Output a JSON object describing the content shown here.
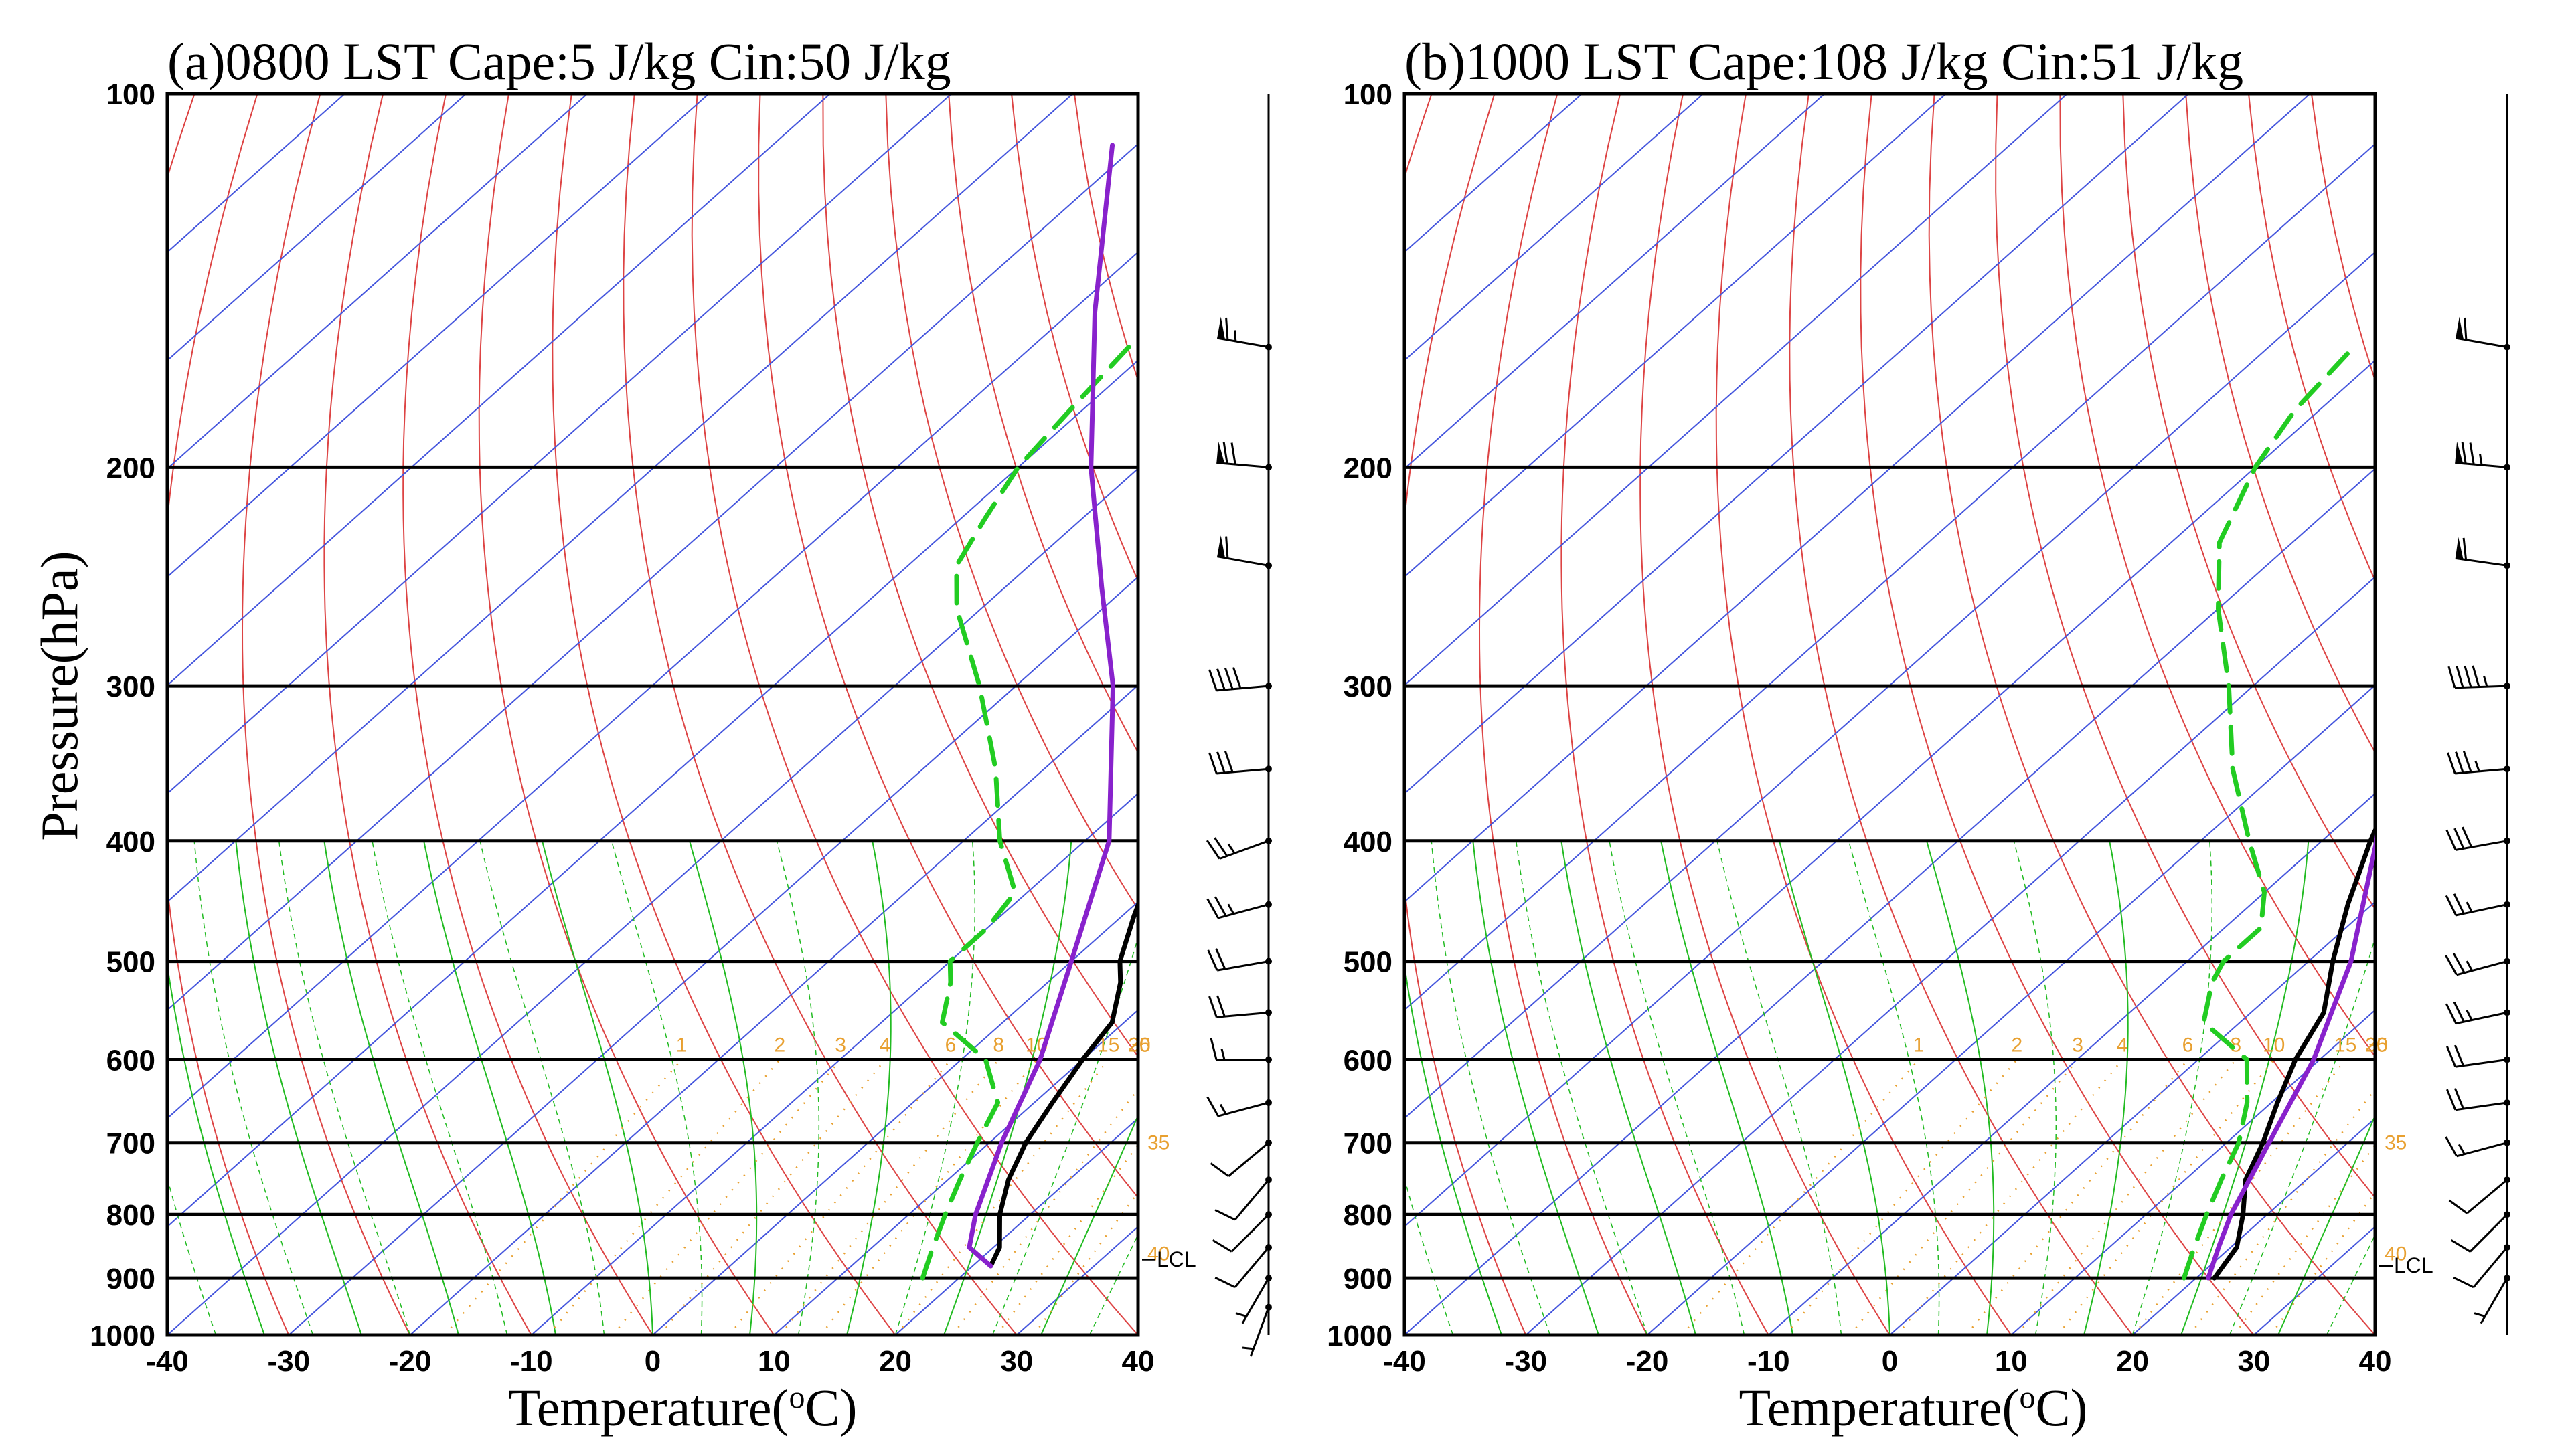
{
  "chart_data": [
    {
      "type": "skew-t",
      "title": "(a)0800 LST   Cape:5 J/kg   Cin:50 J/kg",
      "xlabel": "Temperature(oC)",
      "ylabel": "Pressure(hPa)",
      "xlim": [
        -40,
        40
      ],
      "ylim": [
        1000,
        100
      ],
      "x_ticks": [
        "-40",
        "-30",
        "-20",
        "-10",
        "0",
        "10",
        "20",
        "30",
        "40"
      ],
      "pressure_ticks": [
        "100",
        "200",
        "300",
        "400",
        "500",
        "600",
        "700",
        "800",
        "900",
        "1000"
      ],
      "mixing_ratio_labels": [
        "1",
        "2",
        "3",
        "4",
        "6",
        "8",
        "10",
        "15",
        "20",
        "25",
        "30",
        "35",
        "40"
      ],
      "lcl_label": "LCL",
      "lcl_pressure": 870,
      "series": [
        {
          "name": "temperature",
          "color": "#000000",
          "points": [
            [
              880,
              21.5
            ],
            [
              850,
              20.5
            ],
            [
              800,
              17.5
            ],
            [
              750,
              15
            ],
            [
              700,
              13
            ],
            [
              650,
              11.5
            ],
            [
              600,
              10
            ],
            [
              560,
              9
            ],
            [
              520,
              6
            ],
            [
              500,
              4
            ],
            [
              460,
              1
            ],
            [
              420,
              -2
            ],
            [
              380,
              -4
            ],
            [
              350,
              -6
            ],
            [
              300,
              -10
            ],
            [
              260,
              -13
            ],
            [
              240,
              -14
            ],
            [
              220,
              -12
            ],
            [
              200,
              -10
            ],
            [
              180,
              -8
            ],
            [
              160,
              -6
            ]
          ]
        },
        {
          "name": "dewpoint",
          "color": "#22cc22",
          "points": [
            [
              900,
              17
            ],
            [
              850,
              15
            ],
            [
              800,
              13
            ],
            [
              750,
              11
            ],
            [
              700,
              9
            ],
            [
              650,
              7
            ],
            [
              600,
              2
            ],
            [
              560,
              -5
            ],
            [
              520,
              -8
            ],
            [
              500,
              -10
            ],
            [
              470,
              -10
            ],
            [
              440,
              -11
            ],
            [
              400,
              -17
            ],
            [
              350,
              -24
            ],
            [
              300,
              -33
            ],
            [
              260,
              -42
            ],
            [
              240,
              -46
            ],
            [
              220,
              -48
            ],
            [
              200,
              -50
            ],
            [
              180,
              -51
            ],
            [
              160,
              -52
            ]
          ]
        },
        {
          "name": "parcel",
          "color": "#8822cc",
          "points": [
            [
              880,
              21.5
            ],
            [
              850,
              18
            ],
            [
              800,
              15.5
            ],
            [
              700,
              11
            ],
            [
              600,
              6.5
            ],
            [
              500,
              0
            ],
            [
              400,
              -8
            ],
            [
              300,
              -22
            ],
            [
              250,
              -32
            ],
            [
              200,
              -44
            ],
            [
              150,
              -58
            ],
            [
              110,
              -72
            ]
          ]
        }
      ],
      "wind_barbs": [
        {
          "pressure": 160,
          "speed_kt": 65,
          "dir_deg": 280
        },
        {
          "pressure": 200,
          "speed_kt": 70,
          "dir_deg": 275
        },
        {
          "pressure": 240,
          "speed_kt": 60,
          "dir_deg": 280
        },
        {
          "pressure": 300,
          "speed_kt": 40,
          "dir_deg": 265
        },
        {
          "pressure": 350,
          "speed_kt": 30,
          "dir_deg": 265
        },
        {
          "pressure": 400,
          "speed_kt": 25,
          "dir_deg": 250
        },
        {
          "pressure": 450,
          "speed_kt": 25,
          "dir_deg": 255
        },
        {
          "pressure": 500,
          "speed_kt": 20,
          "dir_deg": 260
        },
        {
          "pressure": 550,
          "speed_kt": 20,
          "dir_deg": 265
        },
        {
          "pressure": 600,
          "speed_kt": 15,
          "dir_deg": 270
        },
        {
          "pressure": 650,
          "speed_kt": 15,
          "dir_deg": 255
        },
        {
          "pressure": 700,
          "speed_kt": 10,
          "dir_deg": 230
        },
        {
          "pressure": 750,
          "speed_kt": 10,
          "dir_deg": 220
        },
        {
          "pressure": 800,
          "speed_kt": 10,
          "dir_deg": 225
        },
        {
          "pressure": 850,
          "speed_kt": 10,
          "dir_deg": 220
        },
        {
          "pressure": 900,
          "speed_kt": 5,
          "dir_deg": 210
        },
        {
          "pressure": 950,
          "speed_kt": 5,
          "dir_deg": 200
        }
      ]
    },
    {
      "type": "skew-t",
      "title": "(b)1000 LST   Cape:108 J/kg   Cin:51 J/kg",
      "xlabel": "Temperature(oC)",
      "ylabel": "",
      "xlim": [
        -40,
        40
      ],
      "ylim": [
        1000,
        100
      ],
      "x_ticks": [
        "-40",
        "-30",
        "-20",
        "-10",
        "0",
        "10",
        "20",
        "30",
        "40"
      ],
      "pressure_ticks": [
        "100",
        "200",
        "300",
        "400",
        "500",
        "600",
        "700",
        "800",
        "900",
        "1000"
      ],
      "mixing_ratio_labels": [
        "1",
        "2",
        "3",
        "4",
        "6",
        "8",
        "10",
        "15",
        "20",
        "25",
        "30",
        "35",
        "40"
      ],
      "lcl_label": "LCL",
      "lcl_pressure": 880,
      "series": [
        {
          "name": "temperature",
          "color": "#000000",
          "points": [
            [
              900,
              21.5
            ],
            [
              850,
              20.5
            ],
            [
              800,
              18
            ],
            [
              750,
              15
            ],
            [
              700,
              13
            ],
            [
              650,
              10.5
            ],
            [
              600,
              8
            ],
            [
              550,
              6
            ],
            [
              500,
              2
            ],
            [
              450,
              -2
            ],
            [
              400,
              -6
            ],
            [
              350,
              -10
            ],
            [
              300,
              -16
            ],
            [
              260,
              -20
            ],
            [
              240,
              -21
            ],
            [
              220,
              -20
            ],
            [
              200,
              -19
            ],
            [
              180,
              -16
            ],
            [
              160,
              -13
            ]
          ]
        },
        {
          "name": "dewpoint",
          "color": "#22cc22",
          "points": [
            [
              900,
              19
            ],
            [
              850,
              17
            ],
            [
              800,
              15
            ],
            [
              750,
              13
            ],
            [
              700,
              11
            ],
            [
              650,
              8
            ],
            [
              600,
              4
            ],
            [
              560,
              -3
            ],
            [
              520,
              -6
            ],
            [
              500,
              -7
            ],
            [
              470,
              -7
            ],
            [
              440,
              -10
            ],
            [
              400,
              -16
            ],
            [
              350,
              -24
            ],
            [
              300,
              -32
            ],
            [
              260,
              -40
            ],
            [
              230,
              -46
            ],
            [
              200,
              -50
            ],
            [
              180,
              -52
            ],
            [
              160,
              -53
            ]
          ]
        },
        {
          "name": "parcel",
          "color": "#8822cc",
          "points": [
            [
              900,
              21
            ],
            [
              850,
              19
            ],
            [
              800,
              17
            ],
            [
              700,
              13.5
            ],
            [
              600,
              9.5
            ],
            [
              500,
              3.5
            ],
            [
              400,
              -5.5
            ],
            [
              300,
              -18
            ],
            [
              250,
              -27
            ],
            [
              200,
              -39
            ],
            [
              150,
              -53
            ],
            [
              110,
              -66
            ]
          ]
        }
      ],
      "wind_barbs": [
        {
          "pressure": 160,
          "speed_kt": 60,
          "dir_deg": 280
        },
        {
          "pressure": 200,
          "speed_kt": 75,
          "dir_deg": 275
        },
        {
          "pressure": 240,
          "speed_kt": 60,
          "dir_deg": 278
        },
        {
          "pressure": 300,
          "speed_kt": 45,
          "dir_deg": 268
        },
        {
          "pressure": 350,
          "speed_kt": 35,
          "dir_deg": 265
        },
        {
          "pressure": 400,
          "speed_kt": 30,
          "dir_deg": 260
        },
        {
          "pressure": 450,
          "speed_kt": 25,
          "dir_deg": 258
        },
        {
          "pressure": 500,
          "speed_kt": 25,
          "dir_deg": 255
        },
        {
          "pressure": 550,
          "speed_kt": 25,
          "dir_deg": 258
        },
        {
          "pressure": 600,
          "speed_kt": 20,
          "dir_deg": 262
        },
        {
          "pressure": 650,
          "speed_kt": 20,
          "dir_deg": 262
        },
        {
          "pressure": 700,
          "speed_kt": 15,
          "dir_deg": 255
        },
        {
          "pressure": 750,
          "speed_kt": 10,
          "dir_deg": 230
        },
        {
          "pressure": 800,
          "speed_kt": 10,
          "dir_deg": 225
        },
        {
          "pressure": 850,
          "speed_kt": 10,
          "dir_deg": 220
        },
        {
          "pressure": 900,
          "speed_kt": 5,
          "dir_deg": 210
        }
      ]
    }
  ],
  "colors": {
    "isotherm": "#4455dd",
    "dry_adiabat": "#dd4444",
    "moist_adiabat": "#22bb22",
    "mixing_ratio": "#e8a030",
    "grid": "#000000"
  }
}
